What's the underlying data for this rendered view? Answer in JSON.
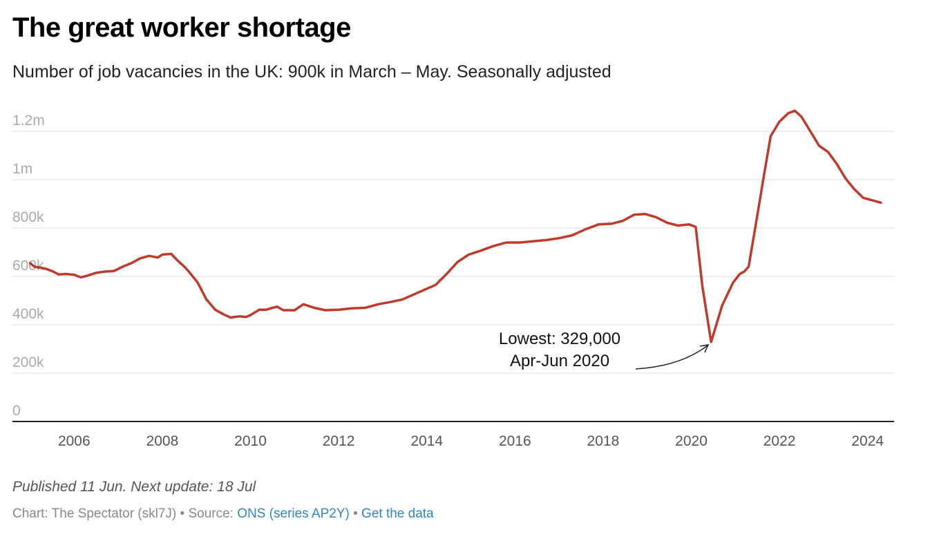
{
  "header": {
    "title": "The great worker shortage",
    "subtitle": "Number of job vacancies in the UK: 900k in March – May. Seasonally adjusted"
  },
  "chart_data": {
    "type": "line",
    "title": "The great worker shortage",
    "subtitle": "Number of job vacancies in the UK: 900k in March – May. Seasonally adjusted",
    "xlabel": "",
    "ylabel": "",
    "ylim": [
      0,
      1300000
    ],
    "xlim": [
      2004.6,
      2024.6
    ],
    "grid": true,
    "line_color": "#c0392b",
    "y_ticks": [
      {
        "value": 0,
        "label": "0"
      },
      {
        "value": 200000,
        "label": "200k"
      },
      {
        "value": 400000,
        "label": "400k"
      },
      {
        "value": 600000,
        "label": "600k"
      },
      {
        "value": 800000,
        "label": "800k"
      },
      {
        "value": 1000000,
        "label": "1m"
      },
      {
        "value": 1200000,
        "label": "1.2m"
      }
    ],
    "x_ticks": [
      {
        "value": 2006,
        "label": "2006"
      },
      {
        "value": 2008,
        "label": "2008"
      },
      {
        "value": 2010,
        "label": "2010"
      },
      {
        "value": 2012,
        "label": "2012"
      },
      {
        "value": 2014,
        "label": "2014"
      },
      {
        "value": 2016,
        "label": "2016"
      },
      {
        "value": 2018,
        "label": "2018"
      },
      {
        "value": 2020,
        "label": "2020"
      },
      {
        "value": 2022,
        "label": "2022"
      },
      {
        "value": 2024,
        "label": "2024"
      }
    ],
    "series": [
      {
        "name": "Job vacancies",
        "x": [
          2005.0,
          2005.1,
          2005.2,
          2005.35,
          2005.5,
          2005.65,
          2005.8,
          2006.0,
          2006.15,
          2006.3,
          2006.5,
          2006.7,
          2006.9,
          2007.1,
          2007.3,
          2007.5,
          2007.7,
          2007.9,
          2008.0,
          2008.2,
          2008.35,
          2008.5,
          2008.6,
          2008.8,
          2009.0,
          2009.2,
          2009.4,
          2009.55,
          2009.75,
          2009.9,
          2010.0,
          2010.2,
          2010.35,
          2010.6,
          2010.75,
          2011.0,
          2011.2,
          2011.45,
          2011.7,
          2012.0,
          2012.3,
          2012.6,
          2012.9,
          2013.2,
          2013.45,
          2013.7,
          2013.95,
          2014.2,
          2014.45,
          2014.7,
          2014.95,
          2015.2,
          2015.5,
          2015.8,
          2016.1,
          2016.4,
          2016.7,
          2017.0,
          2017.3,
          2017.6,
          2017.9,
          2018.2,
          2018.45,
          2018.7,
          2018.95,
          2019.2,
          2019.45,
          2019.7,
          2019.95,
          2020.1,
          2020.25,
          2020.45,
          2020.7,
          2020.95,
          2021.1,
          2021.2,
          2021.3,
          2021.45,
          2021.65,
          2021.8,
          2022.0,
          2022.2,
          2022.35,
          2022.5,
          2022.7,
          2022.9,
          2023.1,
          2023.3,
          2023.5,
          2023.7,
          2023.9,
          2024.1,
          2024.3
        ],
        "values": [
          655000,
          640000,
          637000,
          632000,
          622000,
          608000,
          610000,
          607000,
          596000,
          603000,
          615000,
          620000,
          622000,
          640000,
          655000,
          675000,
          685000,
          678000,
          690000,
          693000,
          665000,
          640000,
          620000,
          575000,
          505000,
          462000,
          442000,
          430000,
          435000,
          432000,
          440000,
          462000,
          462000,
          475000,
          460000,
          460000,
          485000,
          470000,
          460000,
          462000,
          468000,
          470000,
          485000,
          495000,
          505000,
          525000,
          545000,
          565000,
          610000,
          660000,
          690000,
          705000,
          725000,
          740000,
          740000,
          745000,
          750000,
          758000,
          770000,
          795000,
          815000,
          818000,
          830000,
          855000,
          858000,
          845000,
          822000,
          810000,
          815000,
          805000,
          560000,
          329000,
          480000,
          575000,
          610000,
          620000,
          640000,
          800000,
          1020000,
          1180000,
          1240000,
          1275000,
          1285000,
          1260000,
          1200000,
          1140000,
          1115000,
          1065000,
          1005000,
          960000,
          925000,
          915000,
          905000
        ]
      }
    ],
    "annotation": {
      "text_line1": "Lowest: 329,000",
      "text_line2": "Apr-Jun 2020",
      "x": 2020.45,
      "y": 329000
    }
  },
  "footer": {
    "notes": "Published 11 Jun. Next update: 18 Jul",
    "credit_prefix": "Chart: The Spectator (skl7J) • Source: ",
    "source_link": "ONS (series AP2Y)",
    "separator": " • ",
    "data_link": "Get the data"
  }
}
